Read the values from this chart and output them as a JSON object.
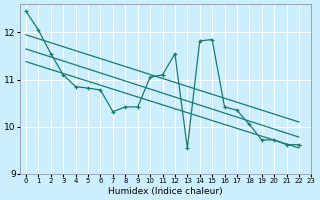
{
  "xlabel": "Humidex (Indice chaleur)",
  "background_color": "#cceeff",
  "grid_color": "#ffffff",
  "line_color": "#1a7a6e",
  "xlim": [
    -0.5,
    23
  ],
  "ylim": [
    9.0,
    12.6
  ],
  "yticks": [
    9,
    10,
    11,
    12
  ],
  "xticks": [
    0,
    1,
    2,
    3,
    4,
    5,
    6,
    7,
    8,
    9,
    10,
    11,
    12,
    13,
    14,
    15,
    16,
    17,
    18,
    19,
    20,
    21,
    22,
    23
  ],
  "series": [
    {
      "x": [
        0,
        1,
        2,
        3,
        4,
        5,
        6,
        7,
        8,
        9,
        10,
        11,
        12,
        13,
        14,
        15,
        16,
        17,
        18,
        19,
        20,
        21,
        22
      ],
      "y": [
        12.45,
        12.05,
        11.55,
        11.1,
        10.85,
        10.82,
        10.78,
        10.32,
        10.42,
        10.42,
        11.05,
        11.1,
        11.55,
        9.55,
        11.82,
        11.85,
        10.42,
        10.35,
        10.05,
        9.72,
        9.72,
        9.62,
        9.62
      ]
    },
    {
      "x": [
        0,
        22
      ],
      "y": [
        11.95,
        10.1
      ]
    },
    {
      "x": [
        0,
        22
      ],
      "y": [
        11.65,
        9.78
      ]
    },
    {
      "x": [
        0,
        22
      ],
      "y": [
        11.38,
        9.55
      ]
    }
  ]
}
